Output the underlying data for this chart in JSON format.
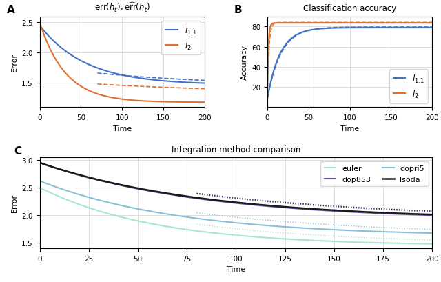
{
  "panel_A": {
    "title": "err$(h_t)$, $\\widehat{\\mathrm{err}}(h_t)$",
    "xlabel": "Time",
    "ylabel": "Error",
    "xlim": [
      0,
      200
    ],
    "ylim": [
      1.1,
      2.6
    ],
    "yticks": [
      1.5,
      2.0,
      2.5
    ],
    "color_blue": "#4472c4",
    "color_orange": "#e07030",
    "l11_start": 2.45,
    "l11_end": 1.47,
    "l11_decay": 0.018,
    "l2_start": 2.5,
    "l2_end": 1.18,
    "l2_decay": 0.032,
    "l11_dashed_start": 1.78,
    "l11_dashed_end": 1.44,
    "l11_dashed_decay": 0.006,
    "l2_dashed_start": 1.55,
    "l2_dashed_end": 1.32,
    "l2_dashed_decay": 0.005,
    "legend_l11": "$l_{1.1}$",
    "legend_l2": "$l_2$"
  },
  "panel_B": {
    "title": "Classification accuracy",
    "xlabel": "Time",
    "ylabel": "Accuracy",
    "xlim": [
      0,
      200
    ],
    "ylim": [
      0,
      90
    ],
    "yticks": [
      20,
      40,
      60,
      80
    ],
    "color_blue": "#4472c4",
    "color_orange": "#e07030",
    "l11_start": 8.0,
    "l11_plateau": 78.8,
    "l11_decay": 0.065,
    "l2_start": 8.0,
    "l2_plateau": 83.5,
    "l2_decay": 0.8,
    "l11_dashed_plateau": 79.5,
    "l11_dashed_decay": 0.06,
    "l2_dashed_plateau": 84.0,
    "l2_dashed_decay": 0.5,
    "legend_l11": "$l_{1.1}$",
    "legend_l2": "$l_2$"
  },
  "panel_C": {
    "title": "Integration method comparison",
    "xlabel": "Time",
    "ylabel": "Error",
    "xlim": [
      0,
      200
    ],
    "ylim": [
      1.4,
      3.05
    ],
    "yticks": [
      1.5,
      2.0,
      2.5,
      3.0
    ],
    "color_euler": "#a8e6cf",
    "color_dopri5": "#88c0d8",
    "color_dop853": "#7050a8",
    "color_lsoda": "#1a1a1a",
    "euler_start": 2.5,
    "euler_end": 1.44,
    "euler_decay": 0.017,
    "dopri5_start": 2.62,
    "dopri5_end": 1.61,
    "dopri5_decay": 0.014,
    "dop853_start": 2.95,
    "dop853_end": 1.9,
    "dop853_decay": 0.012,
    "lsoda_start": 2.95,
    "lsoda_end": 1.91,
    "lsoda_decay": 0.0118,
    "euler_dashed_end": 1.47,
    "euler_dashed_decay": 0.013,
    "dopri5_dashed_end": 1.63,
    "dopri5_dashed_decay": 0.011,
    "dop853_dashed_end": 1.92,
    "dop853_dashed_decay": 0.01,
    "lsoda_dashed_end": 1.93,
    "lsoda_dashed_decay": 0.0098
  }
}
